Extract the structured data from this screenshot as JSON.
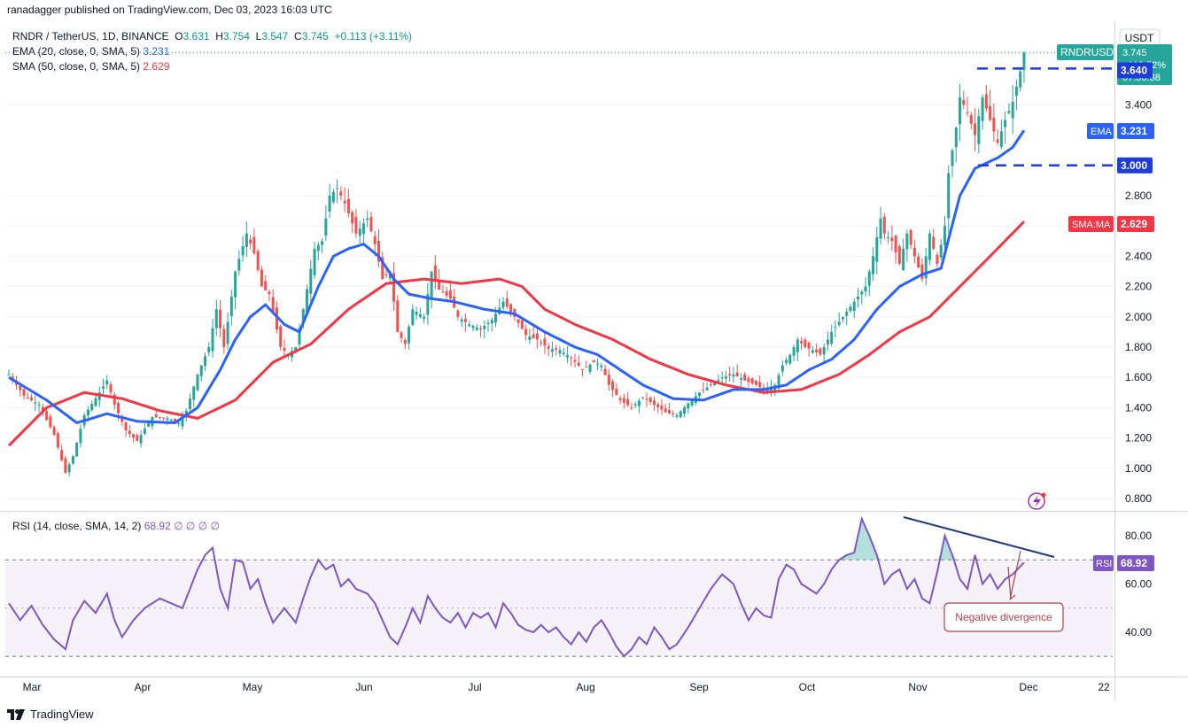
{
  "publisher_line": "ranadagger published on TradingView.com, Dec 03, 2023 16:03 UTC",
  "legend": {
    "symbol": "RNDR / TetherUS, 1D, BINANCE",
    "ohlc": {
      "o_label": "O",
      "o": "3.631",
      "h_label": "H",
      "h": "3.754",
      "l_label": "L",
      "l": "3.547",
      "c_label": "C",
      "c": "3.745",
      "change": "+0.113 (+3.11%)"
    },
    "ema": {
      "label": "EMA (20, close, 0, SMA, 5)",
      "value": "3.231"
    },
    "sma": {
      "label": "SMA (50, close, 0, SMA, 5)",
      "value": "2.629"
    },
    "rsi": {
      "label": "RSI (14, close, SMA, 14, 2)",
      "value": "68.92",
      "extras": "∅ ∅ ∅ ∅"
    }
  },
  "right_scale_badges": {
    "currency": "USDT",
    "symbol": "RNDRUSDT",
    "price": "3.745",
    "pct": "+119.52%",
    "countdown": "07:56:38",
    "level_upper": "3.640",
    "ema_label": "EMA",
    "ema_value": "3.231",
    "level_lower": "3.000",
    "sma_label": "SMA:MA",
    "sma_value": "2.629",
    "rsi_label": "RSI",
    "rsi_value": "68.92"
  },
  "annotation": "Negative divergence",
  "footer": "TradingView",
  "colors": {
    "up": "#26a69a",
    "down": "#ef5350",
    "ema": "#2962ff",
    "sma": "#f23645",
    "rsi": "#7e57c2",
    "level": "#1e3bdc",
    "divergence": "#1f3d7a",
    "annotation": "#b2424f"
  },
  "chart_data": {
    "type": "candlestick",
    "price_axis": {
      "ticks": [
        0.8,
        1.0,
        1.2,
        1.4,
        1.6,
        1.8,
        2.0,
        2.2,
        2.4,
        2.6,
        2.8,
        3.4
      ],
      "tick_labels": [
        "0.800",
        "1.000",
        "1.200",
        "1.400",
        "1.600",
        "1.800",
        "2.000",
        "2.200",
        "2.400",
        "2.600",
        "2.800",
        "3.400"
      ],
      "ylim": [
        0.78,
        3.9
      ]
    },
    "rsi_axis": {
      "ticks": [
        40,
        60,
        80
      ],
      "tick_labels": [
        "40.00",
        "60.00",
        "80.00"
      ],
      "ylim": [
        25,
        88
      ],
      "band": [
        30,
        70
      ],
      "mid": 50
    },
    "time_axis": {
      "labels": [
        "Mar",
        "Apr",
        "May",
        "Jun",
        "Jul",
        "Aug",
        "Sep",
        "Oct",
        "Nov",
        "Dec",
        "22"
      ]
    },
    "horizontal_levels": [
      3.64,
      3.0
    ],
    "close_waypoints": [
      [
        0,
        1.62
      ],
      [
        4,
        1.48
      ],
      [
        8,
        1.42
      ],
      [
        12,
        1.22
      ],
      [
        15,
        0.97
      ],
      [
        17,
        1.08
      ],
      [
        20,
        1.35
      ],
      [
        24,
        1.5
      ],
      [
        26,
        1.58
      ],
      [
        28,
        1.42
      ],
      [
        31,
        1.25
      ],
      [
        34,
        1.18
      ],
      [
        38,
        1.34
      ],
      [
        42,
        1.33
      ],
      [
        45,
        1.3
      ],
      [
        47,
        1.38
      ],
      [
        50,
        1.62
      ],
      [
        53,
        1.8
      ],
      [
        55,
        2.05
      ],
      [
        57,
        1.8
      ],
      [
        60,
        2.3
      ],
      [
        63,
        2.55
      ],
      [
        65,
        2.42
      ],
      [
        67,
        2.2
      ],
      [
        69,
        2.15
      ],
      [
        72,
        1.8
      ],
      [
        74,
        1.75
      ],
      [
        76,
        1.8
      ],
      [
        78,
        2.05
      ],
      [
        81,
        2.45
      ],
      [
        83,
        2.5
      ],
      [
        85,
        2.8
      ],
      [
        87,
        2.85
      ],
      [
        89,
        2.75
      ],
      [
        92,
        2.55
      ],
      [
        95,
        2.65
      ],
      [
        97,
        2.48
      ],
      [
        99,
        2.25
      ],
      [
        101,
        2.3
      ],
      [
        103,
        1.9
      ],
      [
        105,
        1.82
      ],
      [
        107,
        2.05
      ],
      [
        110,
        2.0
      ],
      [
        112,
        2.3
      ],
      [
        114,
        2.18
      ],
      [
        117,
        2.12
      ],
      [
        119,
        2.0
      ],
      [
        122,
        1.95
      ],
      [
        125,
        1.92
      ],
      [
        128,
        1.98
      ],
      [
        131,
        2.1
      ],
      [
        134,
        2.0
      ],
      [
        137,
        1.88
      ],
      [
        140,
        1.85
      ],
      [
        143,
        1.79
      ],
      [
        146,
        1.78
      ],
      [
        149,
        1.73
      ],
      [
        152,
        1.65
      ],
      [
        155,
        1.7
      ],
      [
        157,
        1.68
      ],
      [
        159,
        1.55
      ],
      [
        162,
        1.45
      ],
      [
        165,
        1.4
      ],
      [
        168,
        1.47
      ],
      [
        171,
        1.42
      ],
      [
        174,
        1.37
      ],
      [
        177,
        1.35
      ],
      [
        180,
        1.43
      ],
      [
        183,
        1.5
      ],
      [
        186,
        1.55
      ],
      [
        189,
        1.6
      ],
      [
        192,
        1.62
      ],
      [
        195,
        1.58
      ],
      [
        198,
        1.55
      ],
      [
        200,
        1.52
      ],
      [
        203,
        1.55
      ],
      [
        205,
        1.68
      ],
      [
        207,
        1.75
      ],
      [
        209,
        1.85
      ],
      [
        211,
        1.8
      ],
      [
        213,
        1.78
      ],
      [
        215,
        1.75
      ],
      [
        218,
        1.9
      ],
      [
        221,
        2.0
      ],
      [
        224,
        2.1
      ],
      [
        227,
        2.2
      ],
      [
        229,
        2.4
      ],
      [
        231,
        2.65
      ],
      [
        232,
        2.55
      ],
      [
        234,
        2.5
      ],
      [
        236,
        2.35
      ],
      [
        238,
        2.55
      ],
      [
        240,
        2.4
      ],
      [
        242,
        2.25
      ],
      [
        244,
        2.55
      ],
      [
        246,
        2.35
      ],
      [
        248,
        2.6
      ],
      [
        249,
        2.95
      ],
      [
        251,
        3.25
      ],
      [
        252,
        3.45
      ],
      [
        254,
        3.35
      ],
      [
        256,
        3.2
      ],
      [
        258,
        3.45
      ],
      [
        260,
        3.3
      ],
      [
        262,
        3.15
      ],
      [
        264,
        3.3
      ],
      [
        266,
        3.42
      ],
      [
        268,
        3.62
      ],
      [
        269,
        3.745
      ]
    ],
    "ema_waypoints": [
      [
        0,
        1.6
      ],
      [
        10,
        1.45
      ],
      [
        18,
        1.3
      ],
      [
        26,
        1.36
      ],
      [
        34,
        1.31
      ],
      [
        44,
        1.3
      ],
      [
        50,
        1.4
      ],
      [
        56,
        1.65
      ],
      [
        60,
        1.85
      ],
      [
        64,
        2.0
      ],
      [
        68,
        2.08
      ],
      [
        73,
        1.95
      ],
      [
        77,
        1.9
      ],
      [
        82,
        2.2
      ],
      [
        86,
        2.4
      ],
      [
        90,
        2.45
      ],
      [
        94,
        2.48
      ],
      [
        98,
        2.4
      ],
      [
        102,
        2.25
      ],
      [
        106,
        2.15
      ],
      [
        112,
        2.12
      ],
      [
        118,
        2.1
      ],
      [
        126,
        2.05
      ],
      [
        134,
        2.02
      ],
      [
        142,
        1.9
      ],
      [
        150,
        1.8
      ],
      [
        156,
        1.75
      ],
      [
        162,
        1.65
      ],
      [
        168,
        1.55
      ],
      [
        176,
        1.46
      ],
      [
        184,
        1.45
      ],
      [
        192,
        1.52
      ],
      [
        200,
        1.52
      ],
      [
        206,
        1.55
      ],
      [
        212,
        1.65
      ],
      [
        218,
        1.72
      ],
      [
        224,
        1.85
      ],
      [
        230,
        2.05
      ],
      [
        236,
        2.2
      ],
      [
        242,
        2.28
      ],
      [
        247,
        2.32
      ],
      [
        252,
        2.8
      ],
      [
        256,
        2.98
      ],
      [
        262,
        3.05
      ],
      [
        266,
        3.12
      ],
      [
        269,
        3.231
      ]
    ],
    "sma_waypoints": [
      [
        0,
        1.15
      ],
      [
        10,
        1.4
      ],
      [
        20,
        1.5
      ],
      [
        30,
        1.46
      ],
      [
        40,
        1.38
      ],
      [
        50,
        1.33
      ],
      [
        60,
        1.45
      ],
      [
        70,
        1.7
      ],
      [
        80,
        1.82
      ],
      [
        90,
        2.05
      ],
      [
        100,
        2.22
      ],
      [
        110,
        2.25
      ],
      [
        120,
        2.22
      ],
      [
        130,
        2.25
      ],
      [
        136,
        2.2
      ],
      [
        142,
        2.05
      ],
      [
        150,
        1.95
      ],
      [
        160,
        1.85
      ],
      [
        170,
        1.72
      ],
      [
        180,
        1.62
      ],
      [
        190,
        1.55
      ],
      [
        200,
        1.5
      ],
      [
        210,
        1.52
      ],
      [
        220,
        1.62
      ],
      [
        228,
        1.75
      ],
      [
        236,
        1.9
      ],
      [
        244,
        2.0
      ],
      [
        252,
        2.2
      ],
      [
        260,
        2.4
      ],
      [
        269,
        2.629
      ]
    ],
    "rsi_waypoints": [
      [
        0,
        52
      ],
      [
        3,
        45
      ],
      [
        6,
        51
      ],
      [
        9,
        43
      ],
      [
        12,
        37
      ],
      [
        15,
        33
      ],
      [
        17,
        45
      ],
      [
        20,
        53
      ],
      [
        23,
        48
      ],
      [
        26,
        56
      ],
      [
        28,
        45
      ],
      [
        30,
        38
      ],
      [
        33,
        45
      ],
      [
        36,
        50
      ],
      [
        40,
        54
      ],
      [
        43,
        52
      ],
      [
        46,
        50
      ],
      [
        50,
        66
      ],
      [
        52,
        72
      ],
      [
        54,
        75
      ],
      [
        56,
        58
      ],
      [
        58,
        50
      ],
      [
        60,
        70
      ],
      [
        62,
        69
      ],
      [
        64,
        58
      ],
      [
        66,
        62
      ],
      [
        68,
        52
      ],
      [
        70,
        44
      ],
      [
        73,
        50
      ],
      [
        76,
        44
      ],
      [
        78,
        54
      ],
      [
        80,
        63
      ],
      [
        82,
        70
      ],
      [
        84,
        66
      ],
      [
        86,
        68
      ],
      [
        88,
        59
      ],
      [
        90,
        62
      ],
      [
        92,
        58
      ],
      [
        95,
        56
      ],
      [
        97,
        52
      ],
      [
        99,
        45
      ],
      [
        101,
        38
      ],
      [
        103,
        35
      ],
      [
        105,
        42
      ],
      [
        107,
        50
      ],
      [
        109,
        44
      ],
      [
        111,
        55
      ],
      [
        113,
        50
      ],
      [
        115,
        46
      ],
      [
        117,
        44
      ],
      [
        119,
        48
      ],
      [
        121,
        42
      ],
      [
        123,
        48
      ],
      [
        125,
        46
      ],
      [
        127,
        48
      ],
      [
        129,
        42
      ],
      [
        131,
        52
      ],
      [
        133,
        48
      ],
      [
        135,
        43
      ],
      [
        137,
        41
      ],
      [
        139,
        40
      ],
      [
        141,
        43
      ],
      [
        143,
        40
      ],
      [
        145,
        42
      ],
      [
        147,
        38
      ],
      [
        149,
        35
      ],
      [
        151,
        40
      ],
      [
        153,
        36
      ],
      [
        155,
        42
      ],
      [
        157,
        45
      ],
      [
        159,
        40
      ],
      [
        161,
        34
      ],
      [
        163,
        30
      ],
      [
        165,
        33
      ],
      [
        167,
        38
      ],
      [
        169,
        35
      ],
      [
        171,
        42
      ],
      [
        173,
        38
      ],
      [
        175,
        33
      ],
      [
        177,
        35
      ],
      [
        180,
        42
      ],
      [
        183,
        50
      ],
      [
        186,
        58
      ],
      [
        189,
        64
      ],
      [
        192,
        60
      ],
      [
        194,
        52
      ],
      [
        196,
        45
      ],
      [
        198,
        50
      ],
      [
        200,
        47
      ],
      [
        202,
        46
      ],
      [
        204,
        62
      ],
      [
        206,
        68
      ],
      [
        208,
        66
      ],
      [
        210,
        60
      ],
      [
        212,
        58
      ],
      [
        214,
        56
      ],
      [
        216,
        60
      ],
      [
        218,
        66
      ],
      [
        220,
        70
      ],
      [
        222,
        72
      ],
      [
        224,
        73
      ],
      [
        226,
        87
      ],
      [
        228,
        80
      ],
      [
        230,
        72
      ],
      [
        232,
        60
      ],
      [
        234,
        64
      ],
      [
        236,
        66
      ],
      [
        238,
        58
      ],
      [
        240,
        62
      ],
      [
        242,
        54
      ],
      [
        244,
        52
      ],
      [
        246,
        65
      ],
      [
        248,
        80
      ],
      [
        250,
        72
      ],
      [
        252,
        62
      ],
      [
        254,
        58
      ],
      [
        256,
        72
      ],
      [
        258,
        60
      ],
      [
        260,
        64
      ],
      [
        262,
        58
      ],
      [
        264,
        62
      ],
      [
        266,
        64
      ],
      [
        269,
        68.92
      ]
    ]
  }
}
